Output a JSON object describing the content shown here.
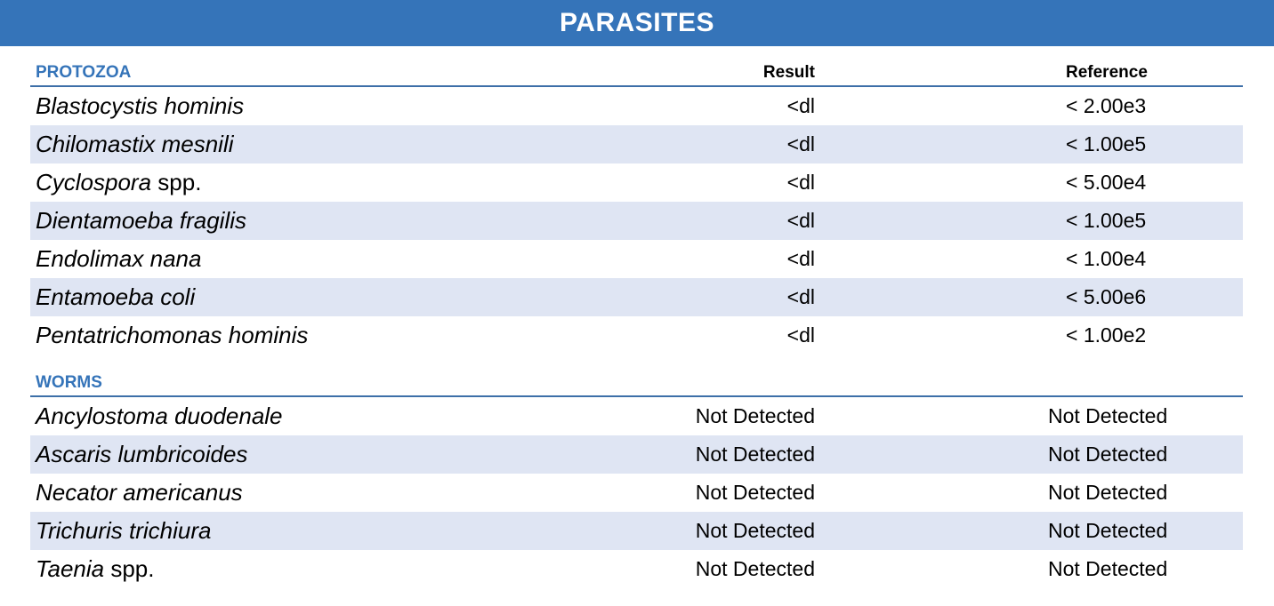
{
  "header": {
    "title": "PARASITES"
  },
  "columns": {
    "result": "Result",
    "reference": "Reference"
  },
  "protozoa": {
    "title": "PROTOZOA",
    "rows": [
      {
        "name": "Blastocystis hominis",
        "suffix": "",
        "result": "<dl",
        "reference": "< 2.00e3"
      },
      {
        "name": "Chilomastix mesnili",
        "suffix": "",
        "result": "<dl",
        "reference": "< 1.00e5"
      },
      {
        "name": "Cyclospora",
        "suffix": " spp.",
        "result": "<dl",
        "reference": "< 5.00e4"
      },
      {
        "name": "Dientamoeba fragilis",
        "suffix": "",
        "result": "<dl",
        "reference": "< 1.00e5"
      },
      {
        "name": "Endolimax nana",
        "suffix": "",
        "result": "<dl",
        "reference": "< 1.00e4"
      },
      {
        "name": "Entamoeba coli",
        "suffix": "",
        "result": "<dl",
        "reference": "< 5.00e6"
      },
      {
        "name": "Pentatrichomonas hominis",
        "suffix": "",
        "result": "<dl",
        "reference": "< 1.00e2"
      }
    ]
  },
  "worms": {
    "title": "WORMS",
    "rows": [
      {
        "name": "Ancylostoma duodenale",
        "suffix": "",
        "result": "Not Detected",
        "reference": "Not Detected"
      },
      {
        "name": "Ascaris lumbricoides",
        "suffix": "",
        "result": "Not Detected",
        "reference": "Not Detected"
      },
      {
        "name": "Necator americanus",
        "suffix": "",
        "result": "Not Detected",
        "reference": "Not Detected"
      },
      {
        "name": "Trichuris trichiura",
        "suffix": "",
        "result": "Not Detected",
        "reference": "Not Detected"
      },
      {
        "name": "Taenia",
        "suffix": " spp.",
        "result": "Not Detected",
        "reference": "Not Detected"
      }
    ]
  },
  "colors": {
    "banner": "#3574b9",
    "row_shade": "#dfe5f3",
    "rule": "#3d6fa8"
  }
}
